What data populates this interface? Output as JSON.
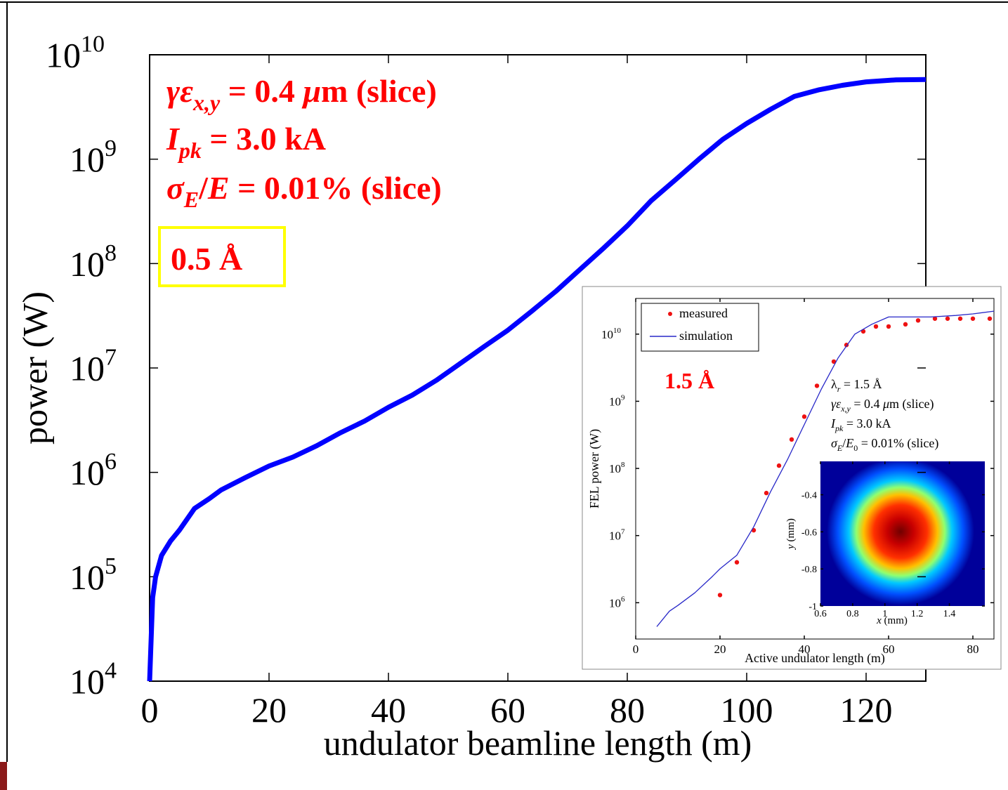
{
  "chart_data": [
    {
      "type": "line",
      "xlabel": "undulator beamline length (m)",
      "ylabel": "power (W)",
      "ylog": true,
      "xlim": [
        0,
        130
      ],
      "ylim": [
        10000,
        10000000000
      ],
      "xticks": [
        0,
        20,
        40,
        60,
        80,
        100,
        120
      ],
      "yticks": [
        {
          "value": 10000,
          "label": "10",
          "exponent": "4"
        },
        {
          "value": 100000,
          "label": "10",
          "exponent": "5"
        },
        {
          "value": 1000000,
          "label": "10",
          "exponent": "6"
        },
        {
          "value": 10000000,
          "label": "10",
          "exponent": "7"
        },
        {
          "value": 100000000,
          "label": "10",
          "exponent": "8"
        },
        {
          "value": 1000000000,
          "label": "10",
          "exponent": "9"
        },
        {
          "value": 10000000000,
          "label": "10",
          "exponent": "10"
        }
      ],
      "x": [
        0,
        0.5,
        1,
        2,
        3.5,
        5,
        7.5,
        10,
        12,
        16,
        20,
        24,
        28,
        32,
        36,
        40,
        44,
        48,
        52,
        56,
        60,
        64,
        68,
        72,
        76,
        80,
        84,
        88,
        92,
        96,
        100,
        104,
        108,
        112,
        116,
        120,
        125,
        130
      ],
      "series": [
        {
          "color": "#0000ff",
          "style": "line",
          "values": [
            10000,
            63000,
            100000,
            160000,
            220000,
            280000,
            450000,
            560000,
            680000,
            890000,
            1150000,
            1400000,
            1800000,
            2400000,
            3100000,
            4200000,
            5500000,
            7600000,
            11000000,
            16000000,
            23000000,
            35000000,
            54000000,
            87000000,
            140000000,
            230000000,
            400000000,
            630000000,
            1000000000,
            1550000000,
            2200000000,
            3000000000,
            4000000000,
            4600000000,
            5100000000,
            5500000000,
            5750000000,
            5800000000
          ]
        }
      ],
      "annotations": [
        [
          "γε",
          "x,y",
          " = 0.4 ",
          "μ",
          "m (slice)"
        ],
        [
          "I",
          "pk",
          " = 3.0 kA"
        ],
        [
          "σ",
          "E",
          "/",
          "E",
          " = 0.01% (slice)"
        ],
        [
          "0.5 Å"
        ]
      ]
    },
    {
      "type": "line",
      "xlabel": "Active undulator length (m)",
      "ylabel": "FEL power (W)",
      "ylog": true,
      "xlim": [
        0,
        85
      ],
      "ylim": [
        288000,
        34000000000
      ],
      "xticks": [
        0,
        20,
        40,
        60,
        80
      ],
      "yticks": [
        {
          "value": 1000000,
          "label": "10",
          "exponent": "6"
        },
        {
          "value": 10000000,
          "label": "10",
          "exponent": "7"
        },
        {
          "value": 100000000,
          "label": "10",
          "exponent": "8"
        },
        {
          "value": 1000000000,
          "label": "10",
          "exponent": "9"
        },
        {
          "value": 10000000000,
          "label": "10",
          "exponent": "10"
        }
      ],
      "legend": "upper left",
      "series": [
        {
          "name": "measured",
          "color": "#ee1111",
          "style": "markers",
          "x": [
            20,
            24,
            28,
            31,
            34,
            37,
            40,
            43,
            47,
            50,
            54,
            57,
            60,
            64,
            67,
            71,
            74,
            77,
            80,
            84
          ],
          "values": [
            1300000,
            4000000,
            12000000,
            43000000,
            110000000,
            270000000,
            590000000,
            1700000000,
            3900000000,
            6900000000,
            11000000000,
            13000000000,
            13000000000,
            14000000000,
            16000000000,
            17000000000,
            17000000000,
            17000000000,
            17000000000,
            17000000000
          ]
        },
        {
          "name": "simulation",
          "color": "#2828c8",
          "style": "line",
          "x": [
            5,
            8,
            10,
            14,
            18,
            20,
            24,
            28,
            32,
            36,
            40,
            44,
            48,
            52,
            56,
            60,
            64,
            70,
            76,
            80,
            85
          ],
          "values": [
            440000,
            750000,
            910000,
            1400000,
            2400000,
            3200000,
            5100000,
            13500000,
            45000000,
            135000000,
            450000000,
            1500000000,
            4400000000,
            10000000000,
            14000000000,
            18000000000,
            18000000000,
            18000000000,
            19000000000,
            20000000000,
            22000000000
          ]
        }
      ],
      "annotations": [
        [
          "1.5 Å"
        ],
        [
          "λ",
          "r",
          " = 1.5 Å"
        ],
        [
          "γε",
          "x,y",
          " = 0.4 ",
          "μ",
          "m (slice)"
        ],
        [
          "I",
          "pk",
          " = 3.0 kA"
        ],
        [
          "σ",
          "E",
          "/",
          "E",
          "0",
          " = 0.01% (slice)"
        ]
      ]
    },
    {
      "type": "heatmap",
      "xlabel": [
        "x",
        " (mm)"
      ],
      "ylabel": [
        "y",
        " (mm)"
      ],
      "xlim": [
        0.6,
        1.62
      ],
      "ylim": [
        -1,
        -0.22
      ],
      "xticks": [
        0.6,
        0.8,
        1,
        1.2,
        1.4
      ],
      "yticks": [
        -1,
        -0.8,
        -0.6,
        -0.4
      ]
    }
  ]
}
